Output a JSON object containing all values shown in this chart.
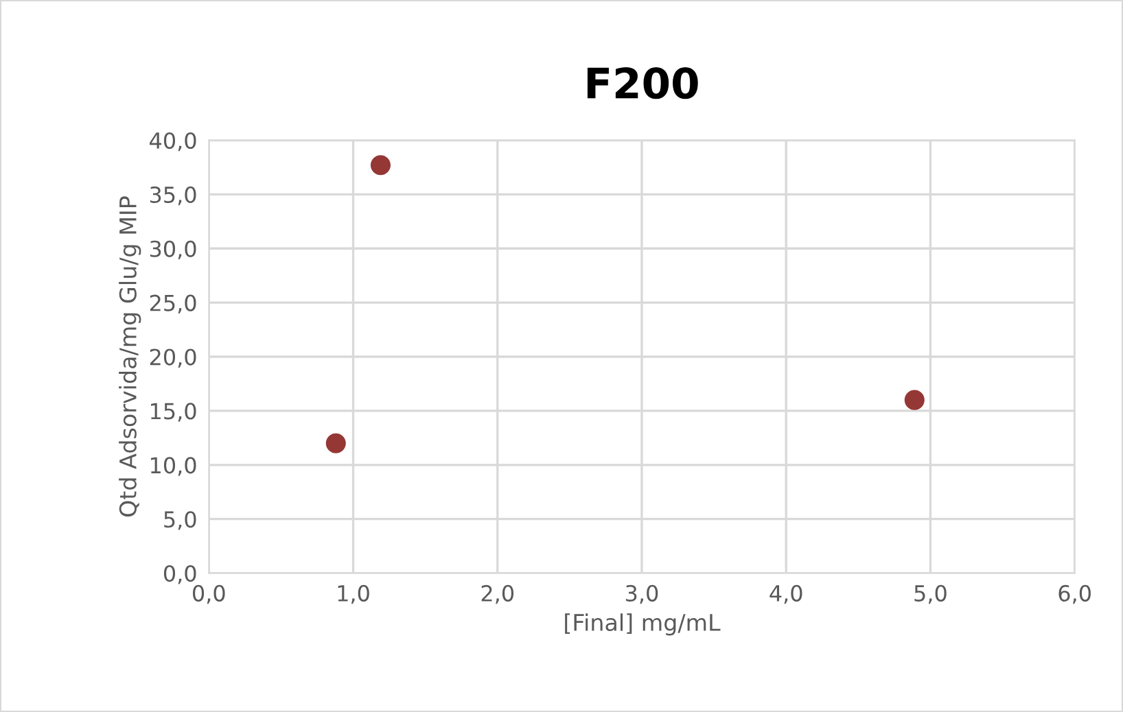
{
  "chart_data": {
    "type": "scatter",
    "title": "F200",
    "xlabel": "[Final] mg/mL",
    "ylabel": "Qtd Adsorvida/mg Glu/g MIP",
    "x": [
      0.88,
      1.19,
      4.89
    ],
    "values": [
      12.0,
      37.7,
      16.0
    ],
    "color": "#953735",
    "marker": "circle",
    "grid": true,
    "legend": false,
    "xlim": [
      0,
      6
    ],
    "ylim": [
      0,
      40
    ],
    "xticks": [
      {
        "value": 0,
        "label": "0,0"
      },
      {
        "value": 1,
        "label": "1,0"
      },
      {
        "value": 2,
        "label": "2,0"
      },
      {
        "value": 3,
        "label": "3,0"
      },
      {
        "value": 4,
        "label": "4,0"
      },
      {
        "value": 5,
        "label": "5,0"
      },
      {
        "value": 6,
        "label": "6,0"
      }
    ],
    "yticks": [
      {
        "value": 0,
        "label": "0,0"
      },
      {
        "value": 5,
        "label": "5,0"
      },
      {
        "value": 10,
        "label": "10,0"
      },
      {
        "value": 15,
        "label": "15,0"
      },
      {
        "value": 20,
        "label": "20,0"
      },
      {
        "value": 25,
        "label": "25,0"
      },
      {
        "value": 30,
        "label": "30,0"
      },
      {
        "value": 35,
        "label": "35,0"
      },
      {
        "value": 40,
        "label": "40,0"
      }
    ]
  }
}
